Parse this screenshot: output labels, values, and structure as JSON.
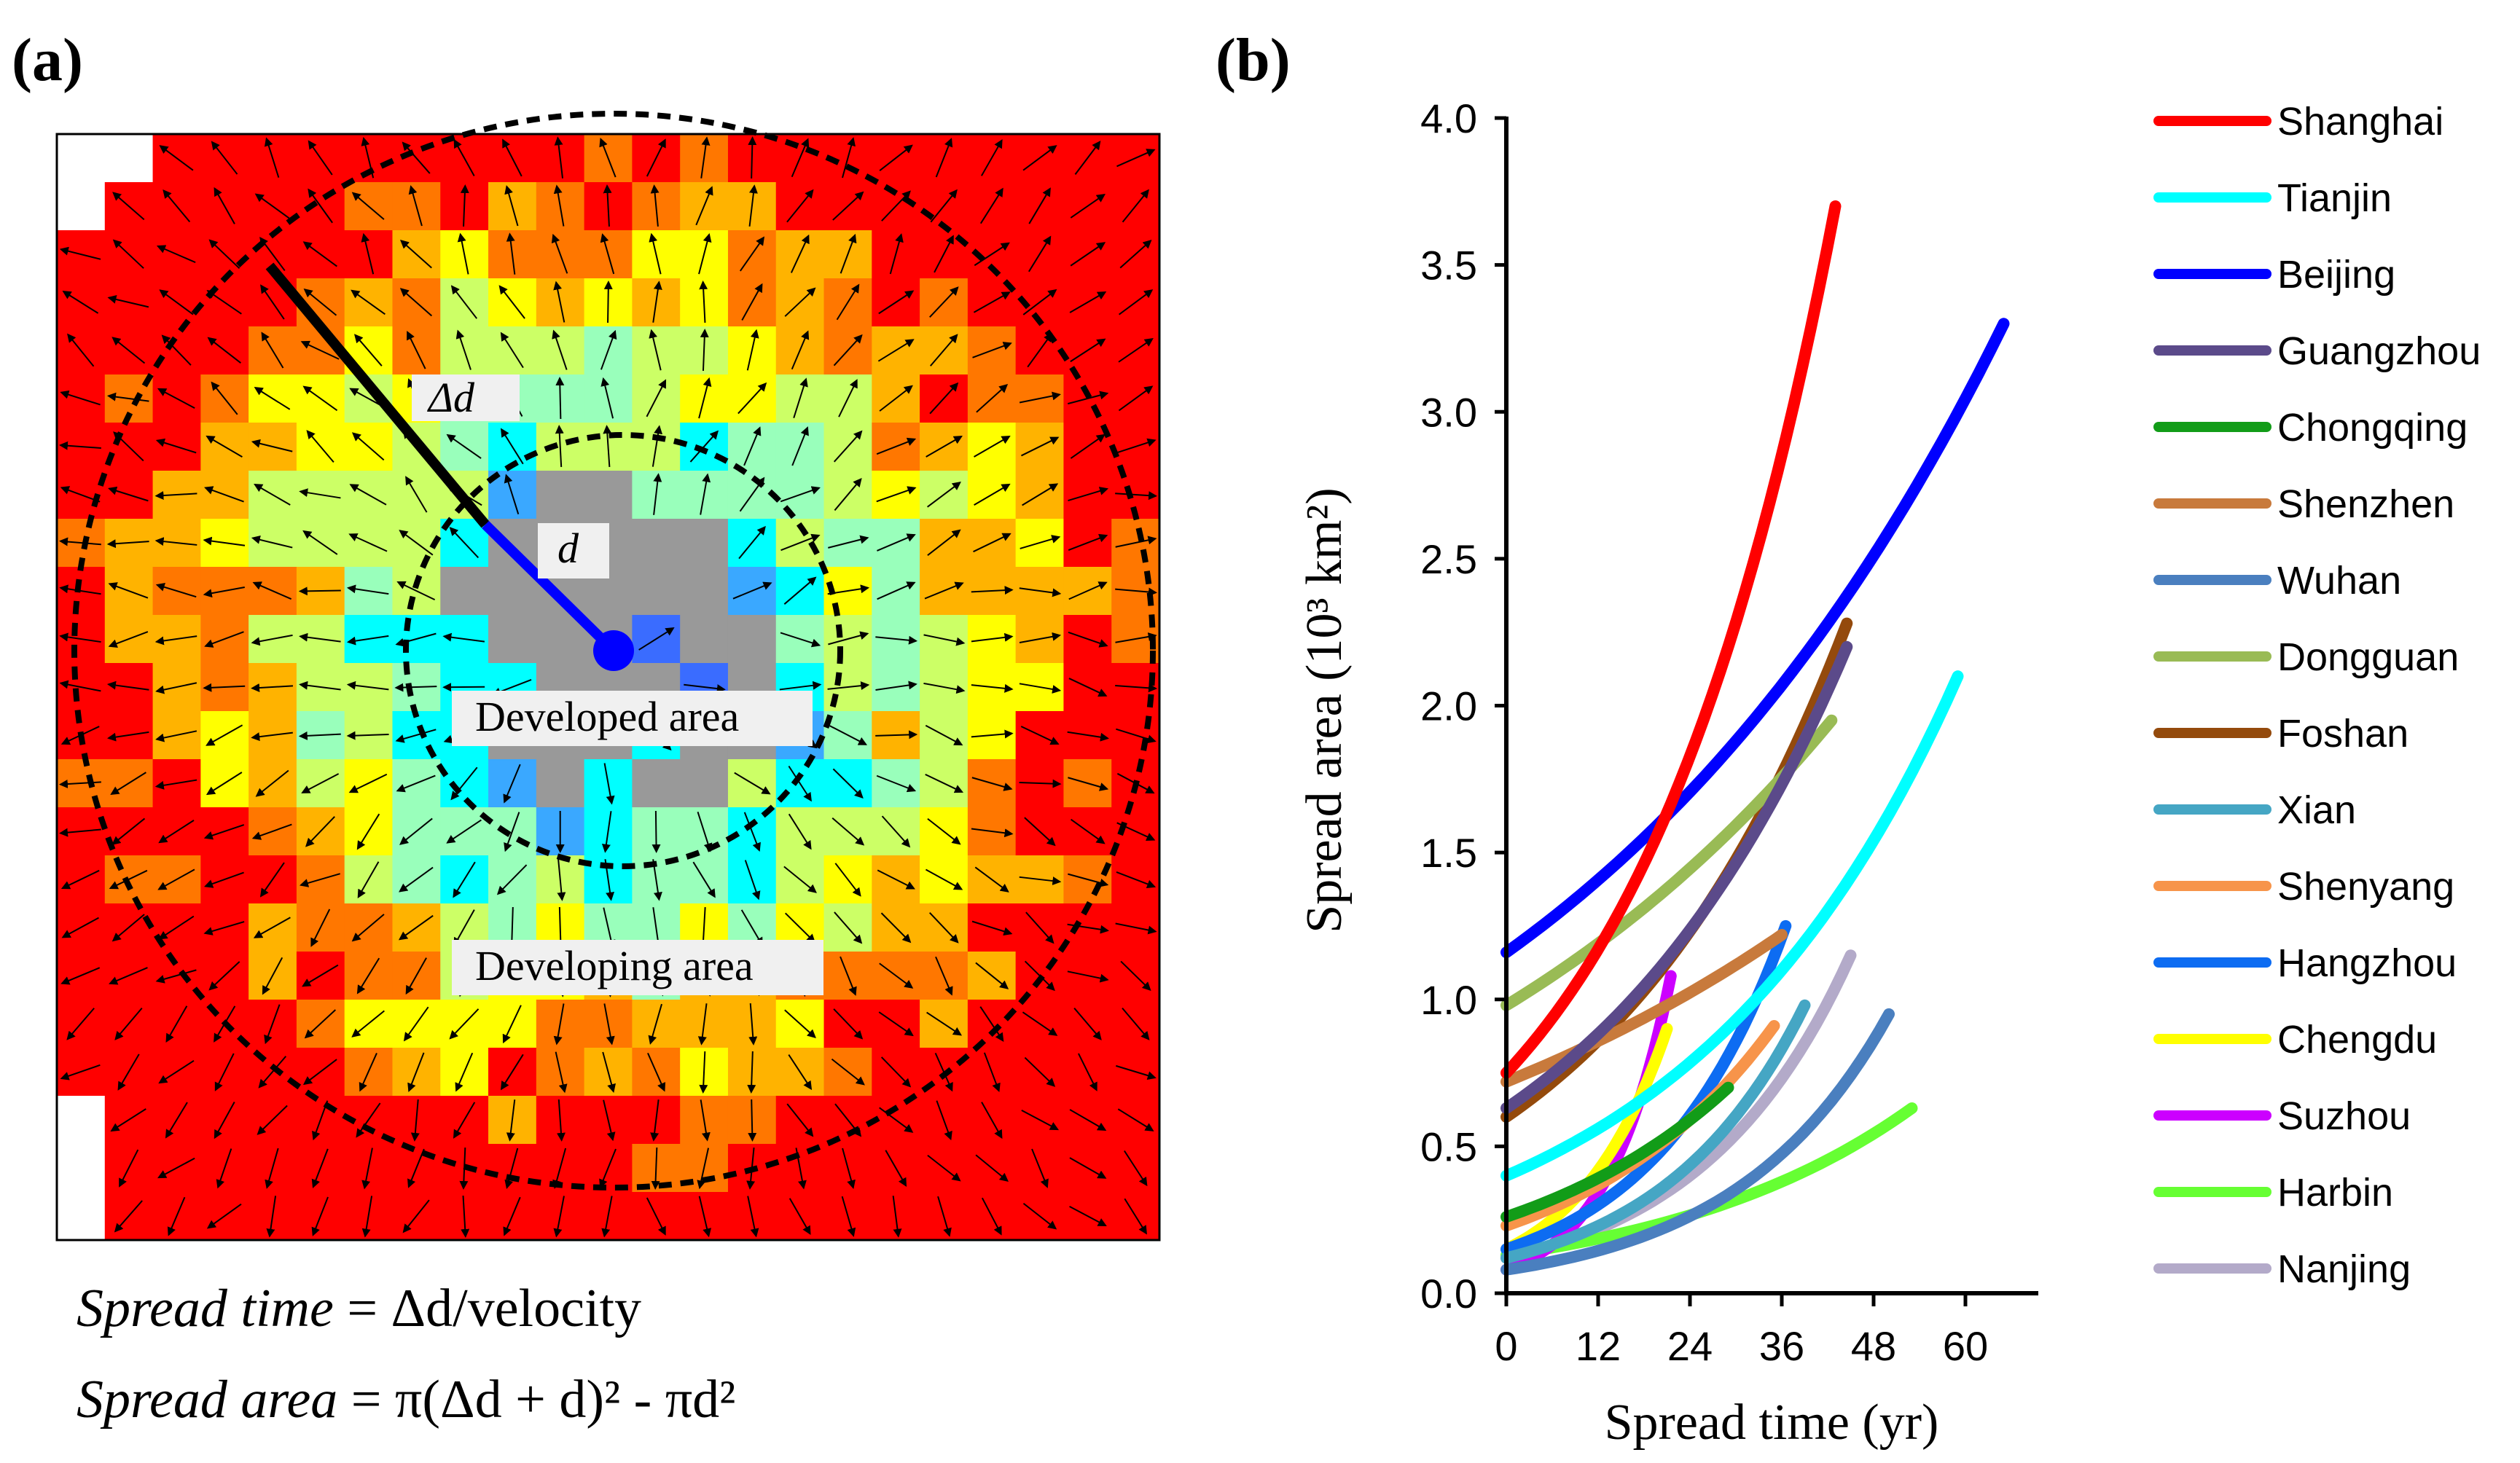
{
  "panels": {
    "a_label": "(a)",
    "b_label": "(b)"
  },
  "map": {
    "labels": {
      "delta_d": "Δd",
      "d": "d",
      "developed": "Developed area",
      "developing": "Developing area"
    },
    "palette": [
      "#999999",
      "#1f3cff",
      "#3a6cff",
      "#3aa8ff",
      "#00ffff",
      "#99ffbb",
      "#ccff66",
      "#ffff00",
      "#ffb300",
      "#ff7700",
      "#ff0000"
    ],
    "line_colors": {
      "delta_d": "#000000",
      "d": "#0000ff"
    }
  },
  "formulas": {
    "time_lhs": "Spread time",
    "time_rhs": " = Δd/velocity",
    "area_lhs": "Spread area",
    "area_rhs": " = π(Δd + d)² - πd²"
  },
  "chart_data": {
    "type": "line",
    "title": "",
    "xlabel": "Spread time (yr)",
    "ylabel": "Spread area (10³ km²)",
    "xlim": [
      0,
      70
    ],
    "ylim": [
      0,
      4.0
    ],
    "xticks": [
      "0",
      "12",
      "24",
      "36",
      "48",
      "60"
    ],
    "xtick_values": [
      0,
      12,
      24,
      36,
      48,
      60
    ],
    "yticks": [
      "0.0",
      "0.5",
      "1.0",
      "1.5",
      "2.0",
      "2.5",
      "3.0",
      "3.5",
      "4.0"
    ],
    "ytick_values": [
      0,
      0.5,
      1,
      1.5,
      2,
      2.5,
      3,
      3.5,
      4
    ],
    "grid": false,
    "legend_position": "right",
    "series": [
      {
        "name": "Shanghai",
        "color": "#ff0000",
        "x_end": 43,
        "y_start": 0.75,
        "y_end": 3.7
      },
      {
        "name": "Tianjin",
        "color": "#00ffff",
        "x_end": 59,
        "y_start": 0.4,
        "y_end": 2.1
      },
      {
        "name": "Beijing",
        "color": "#0000ff",
        "x_end": 65,
        "y_start": 1.16,
        "y_end": 3.3
      },
      {
        "name": "Guangzhou",
        "color": "#5b4a8a",
        "x_end": 44.5,
        "y_start": 0.63,
        "y_end": 2.2
      },
      {
        "name": "Chongqing",
        "color": "#129c18",
        "x_end": 29,
        "y_start": 0.26,
        "y_end": 0.7
      },
      {
        "name": "Shenzhen",
        "color": "#c87a3c",
        "x_end": 36,
        "y_start": 0.72,
        "y_end": 1.22
      },
      {
        "name": "Wuhan",
        "color": "#4a7fbf",
        "x_end": 50,
        "y_start": 0.08,
        "y_end": 0.95
      },
      {
        "name": "Dongguan",
        "color": "#99bb55",
        "x_end": 42.5,
        "y_start": 0.98,
        "y_end": 1.95
      },
      {
        "name": "Foshan",
        "color": "#944a0c",
        "x_end": 44.5,
        "y_start": 0.6,
        "y_end": 2.28
      },
      {
        "name": "Xian",
        "color": "#45a6c4",
        "x_end": 39,
        "y_start": 0.12,
        "y_end": 0.98
      },
      {
        "name": "Shenyang",
        "color": "#f7944a",
        "x_end": 35,
        "y_start": 0.23,
        "y_end": 0.91
      },
      {
        "name": "Hangzhou",
        "color": "#0d6cf2",
        "x_end": 36.5,
        "y_start": 0.15,
        "y_end": 1.25
      },
      {
        "name": "Chengdu",
        "color": "#ffff00",
        "x_end": 21,
        "y_start": 0.15,
        "y_end": 0.9
      },
      {
        "name": "Suzhou",
        "color": "#cc00ff",
        "x_end": 21.5,
        "y_start": 0.08,
        "y_end": 1.08
      },
      {
        "name": "Harbin",
        "color": "#66ff33",
        "x_end": 53,
        "y_start": 0.13,
        "y_end": 0.63
      },
      {
        "name": "Nanjing",
        "color": "#b3aac9",
        "x_end": 45,
        "y_start": 0.12,
        "y_end": 1.15
      }
    ]
  }
}
